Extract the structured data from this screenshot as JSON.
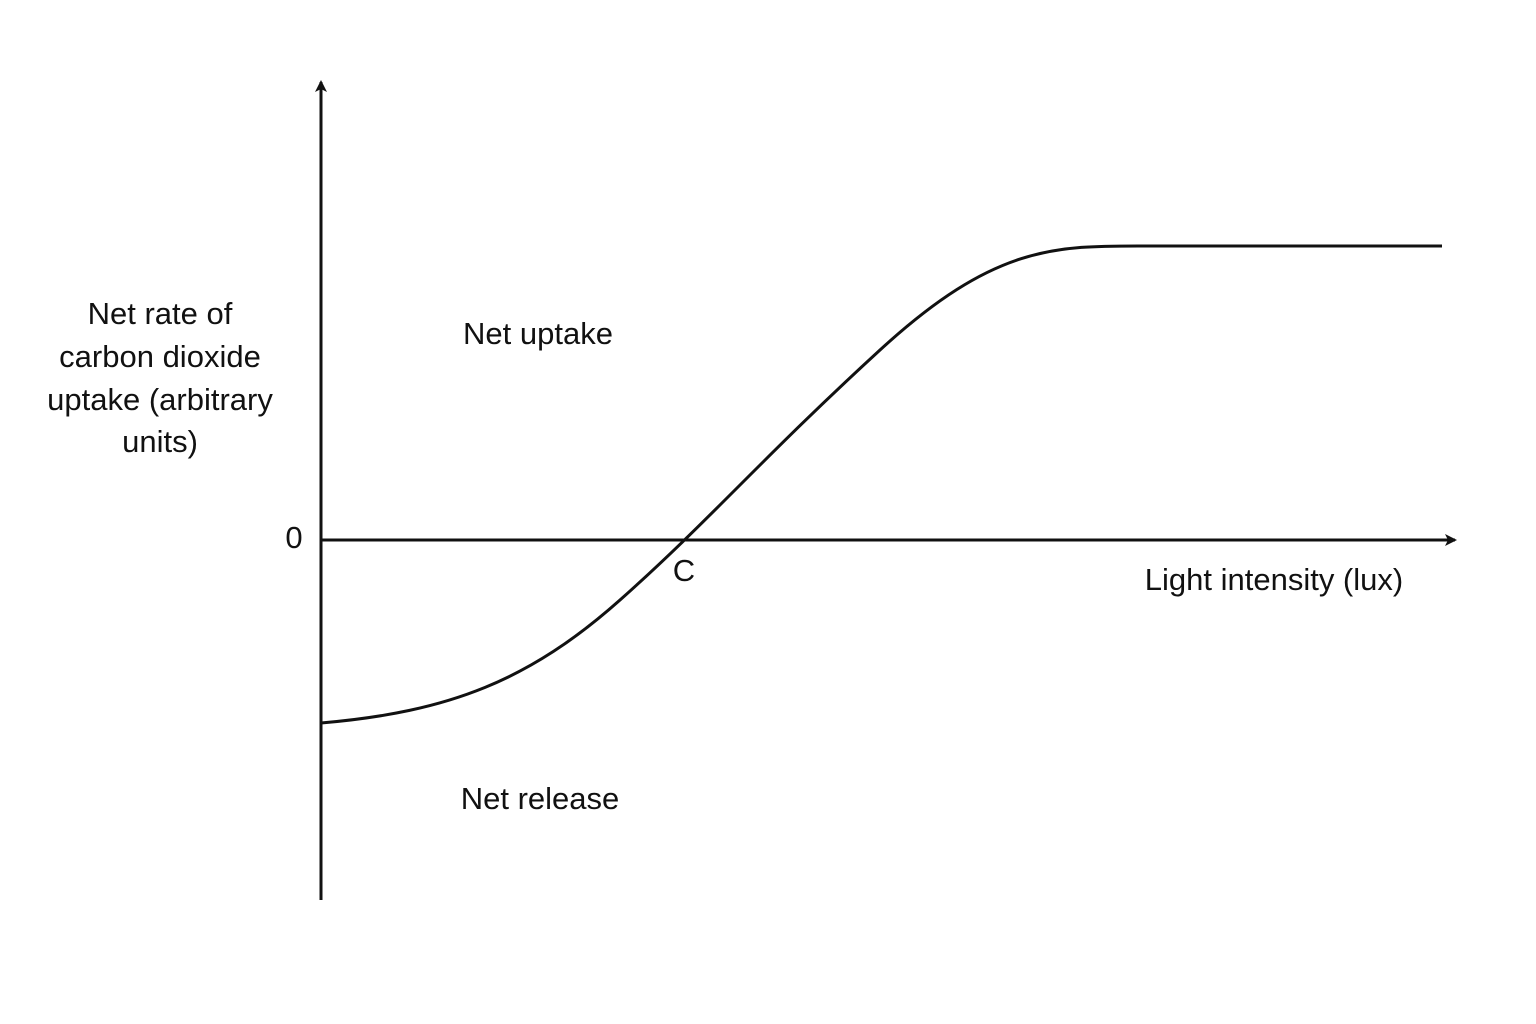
{
  "y_axis": {
    "label_lines": [
      "Net rate of",
      "carbon dioxide",
      "uptake (arbitrary",
      "units)"
    ],
    "zero_label": "0"
  },
  "x_axis": {
    "label": "Light intensity (lux)"
  },
  "regions": {
    "upper": "Net uptake",
    "lower": "Net release"
  },
  "point": {
    "label": "C"
  }
}
